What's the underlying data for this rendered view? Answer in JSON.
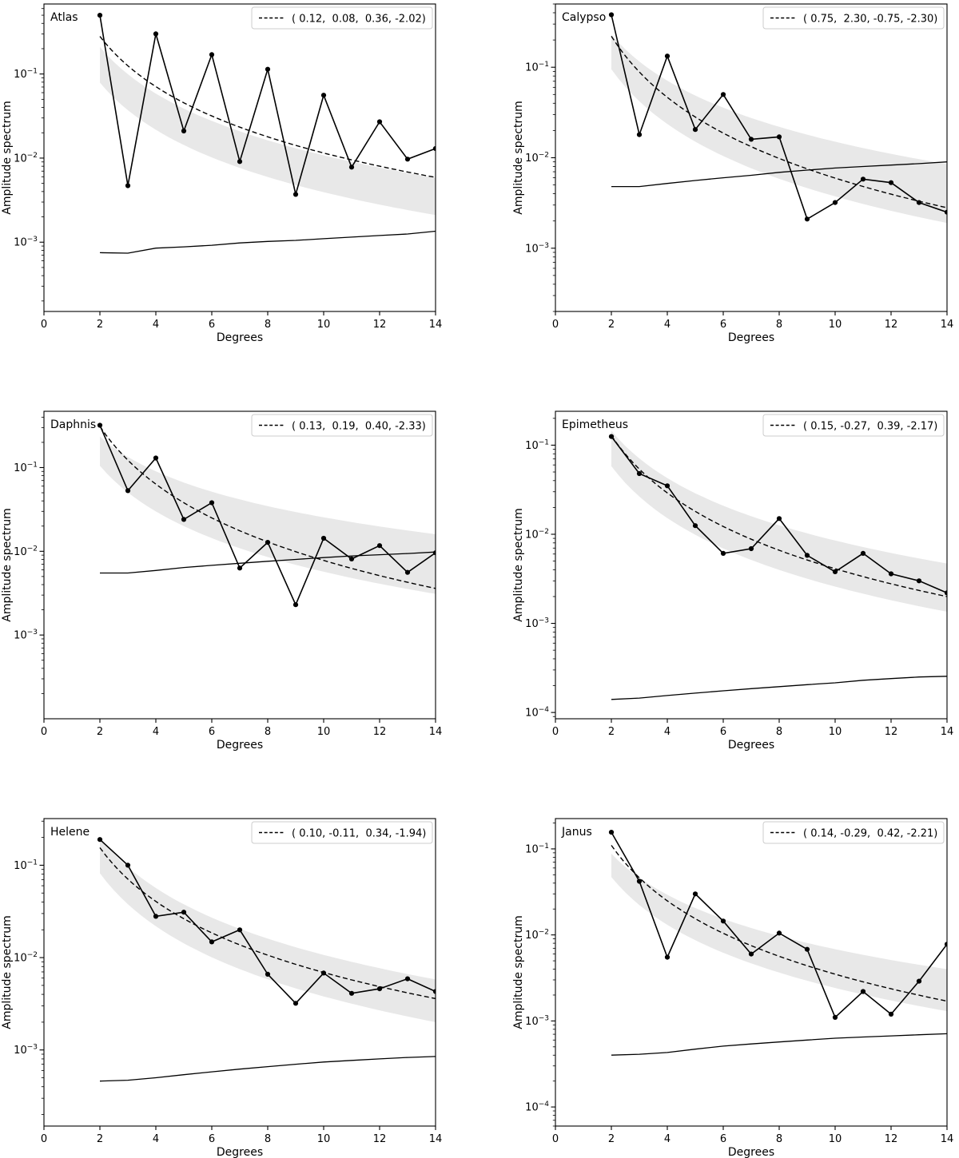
{
  "figure": {
    "xlabel": "Degrees",
    "ylabel": "Amplitude spectrum",
    "x_ticks": [
      0,
      2,
      4,
      6,
      8,
      10,
      12,
      14
    ],
    "xlim": [
      0,
      14
    ],
    "degrees": [
      2,
      3,
      4,
      5,
      6,
      7,
      8,
      9,
      10,
      11,
      12,
      13,
      14
    ],
    "colors": {
      "line": "#000000",
      "band": "#e8e8e8",
      "legend_border": "#cccccc"
    }
  },
  "chart_data": [
    {
      "type": "line",
      "title": "Atlas",
      "xlabel": "Degrees",
      "ylabel": "Amplitude spectrum",
      "legend_label": "( 0.12,  0.08,  0.36, -2.02)",
      "fit_params": [
        0.12,
        0.08,
        0.36,
        -2.02
      ],
      "x": [
        2,
        3,
        4,
        5,
        6,
        7,
        8,
        9,
        10,
        11,
        12,
        13,
        14
      ],
      "spectrum": [
        0.5,
        0.0047,
        0.3,
        0.021,
        0.17,
        0.0091,
        0.114,
        0.0037,
        0.056,
        0.0078,
        0.027,
        0.0097,
        0.013
      ],
      "noise": [
        0.00075,
        0.00074,
        0.00085,
        0.00088,
        0.00092,
        0.00098,
        0.00102,
        0.00105,
        0.0011,
        0.00115,
        0.0012,
        0.00125,
        0.00135
      ],
      "fit": {
        "at_2": 0.28,
        "at_14": 0.0059
      },
      "band": {
        "upper_at_2": 0.21,
        "lower_at_2": 0.079,
        "upper_at_14": 0.0058,
        "lower_at_14": 0.0021
      },
      "ylim": [
        0.00015,
        0.68
      ],
      "y_tick_exponents": [
        -1,
        -2,
        -3
      ],
      "grid": false,
      "legend_position": "top-right"
    },
    {
      "type": "line",
      "title": "Calypso",
      "xlabel": "Degrees",
      "ylabel": "Amplitude spectrum",
      "legend_label": "( 0.75,  2.30, -0.75, -2.30)",
      "fit_params": [
        0.75,
        2.3,
        -0.75,
        -2.3
      ],
      "x": [
        2,
        3,
        4,
        5,
        6,
        7,
        8,
        9,
        10,
        11,
        12,
        13,
        14
      ],
      "spectrum": [
        0.38,
        0.018,
        0.133,
        0.0205,
        0.05,
        0.016,
        0.017,
        0.0021,
        0.0032,
        0.0058,
        0.0053,
        0.0032,
        0.0025
      ],
      "noise": [
        0.0048,
        0.0048,
        0.0052,
        0.0056,
        0.006,
        0.0064,
        0.0069,
        0.0073,
        0.0077,
        0.008,
        0.0083,
        0.0086,
        0.009
      ],
      "fit": {
        "at_2": 0.22,
        "at_14": 0.0028
      },
      "band": {
        "upper_at_2": 0.23,
        "lower_at_2": 0.095,
        "upper_at_14": 0.0085,
        "lower_at_14": 0.0019
      },
      "ylim": [
        0.0002,
        0.5
      ],
      "y_tick_exponents": [
        -1,
        -2,
        -3
      ],
      "grid": false,
      "legend_position": "top-right"
    },
    {
      "type": "line",
      "title": "Daphnis",
      "xlabel": "Degrees",
      "ylabel": "Amplitude spectrum",
      "legend_label": "( 0.13,  0.19,  0.40, -2.33)",
      "fit_params": [
        0.13,
        0.19,
        0.4,
        -2.33
      ],
      "x": [
        2,
        3,
        4,
        5,
        6,
        7,
        8,
        9,
        10,
        11,
        12,
        13,
        14
      ],
      "spectrum": [
        0.32,
        0.053,
        0.13,
        0.024,
        0.038,
        0.0063,
        0.0128,
        0.0023,
        0.0143,
        0.0081,
        0.0117,
        0.0056,
        0.0096
      ],
      "noise": [
        0.0055,
        0.0055,
        0.0059,
        0.0064,
        0.0068,
        0.0072,
        0.0076,
        0.008,
        0.0084,
        0.0088,
        0.0091,
        0.0094,
        0.0098
      ],
      "fit": {
        "at_2": 0.31,
        "at_14": 0.0036
      },
      "band": {
        "upper_at_2": 0.235,
        "lower_at_2": 0.105,
        "upper_at_14": 0.016,
        "lower_at_14": 0.0031
      },
      "ylim": [
        0.0001,
        0.47
      ],
      "y_tick_exponents": [
        -1,
        -2,
        -3
      ],
      "grid": false,
      "legend_position": "top-right"
    },
    {
      "type": "line",
      "title": "Epimetheus",
      "xlabel": "Degrees",
      "ylabel": "Amplitude spectrum",
      "legend_label": "( 0.15, -0.27,  0.39, -2.17)",
      "fit_params": [
        0.15,
        -0.27,
        0.39,
        -2.17
      ],
      "x": [
        2,
        3,
        4,
        5,
        6,
        7,
        8,
        9,
        10,
        11,
        12,
        13,
        14
      ],
      "spectrum": [
        0.125,
        0.048,
        0.035,
        0.0125,
        0.0061,
        0.0069,
        0.015,
        0.0058,
        0.0038,
        0.0061,
        0.0036,
        0.003,
        0.0022
      ],
      "noise": [
        0.00014,
        0.000145,
        0.000155,
        0.000165,
        0.000175,
        0.000185,
        0.000195,
        0.000205,
        0.000215,
        0.00023,
        0.00024,
        0.00025,
        0.000255
      ],
      "fit": {
        "at_2": 0.128,
        "at_14": 0.002
      },
      "band": {
        "upper_at_2": 0.145,
        "lower_at_2": 0.058,
        "upper_at_14": 0.0047,
        "lower_at_14": 0.00135
      },
      "ylim": [
        8.5e-05,
        0.24
      ],
      "y_tick_exponents": [
        -1,
        -2,
        -3,
        -4
      ],
      "grid": false,
      "legend_position": "top-right"
    },
    {
      "type": "line",
      "title": "Helene",
      "xlabel": "Degrees",
      "ylabel": "Amplitude spectrum",
      "legend_label": "( 0.10, -0.11,  0.34, -1.94)",
      "fit_params": [
        0.1,
        -0.11,
        0.34,
        -1.94
      ],
      "x": [
        2,
        3,
        4,
        5,
        6,
        7,
        8,
        9,
        10,
        11,
        12,
        13,
        14
      ],
      "spectrum": [
        0.19,
        0.1,
        0.028,
        0.031,
        0.0148,
        0.02,
        0.0066,
        0.0032,
        0.0068,
        0.0041,
        0.0046,
        0.0059,
        0.0043
      ],
      "noise": [
        0.00046,
        0.00047,
        0.0005,
        0.00054,
        0.00058,
        0.00062,
        0.00066,
        0.0007,
        0.00074,
        0.00077,
        0.0008,
        0.00083,
        0.00085
      ],
      "fit": {
        "at_2": 0.155,
        "at_14": 0.0036
      },
      "band": {
        "upper_at_2": 0.2,
        "lower_at_2": 0.082,
        "upper_at_14": 0.0058,
        "lower_at_14": 0.002
      },
      "ylim": [
        0.00015,
        0.32
      ],
      "y_tick_exponents": [
        -1,
        -2,
        -3
      ],
      "grid": false,
      "legend_position": "top-right"
    },
    {
      "type": "line",
      "title": "Janus",
      "xlabel": "Degrees",
      "ylabel": "Amplitude spectrum",
      "legend_label": "( 0.14, -0.29,  0.42, -2.21)",
      "fit_params": [
        0.14,
        -0.29,
        0.42,
        -2.21
      ],
      "x": [
        2,
        3,
        4,
        5,
        6,
        7,
        8,
        9,
        10,
        11,
        12,
        13,
        14
      ],
      "spectrum": [
        0.156,
        0.042,
        0.0055,
        0.03,
        0.0145,
        0.006,
        0.0105,
        0.0068,
        0.0011,
        0.0022,
        0.0012,
        0.0029,
        0.0078
      ],
      "noise": [
        0.0004,
        0.00041,
        0.00043,
        0.00047,
        0.00051,
        0.00054,
        0.00057,
        0.0006,
        0.00063,
        0.00065,
        0.00067,
        0.00069,
        0.00071
      ],
      "fit": {
        "at_2": 0.11,
        "at_14": 0.0017
      },
      "band": {
        "upper_at_2": 0.088,
        "lower_at_2": 0.047,
        "upper_at_14": 0.004,
        "lower_at_14": 0.0013
      },
      "ylim": [
        6e-05,
        0.225
      ],
      "y_tick_exponents": [
        -1,
        -2,
        -3,
        -4
      ],
      "grid": false,
      "legend_position": "top-right"
    }
  ]
}
